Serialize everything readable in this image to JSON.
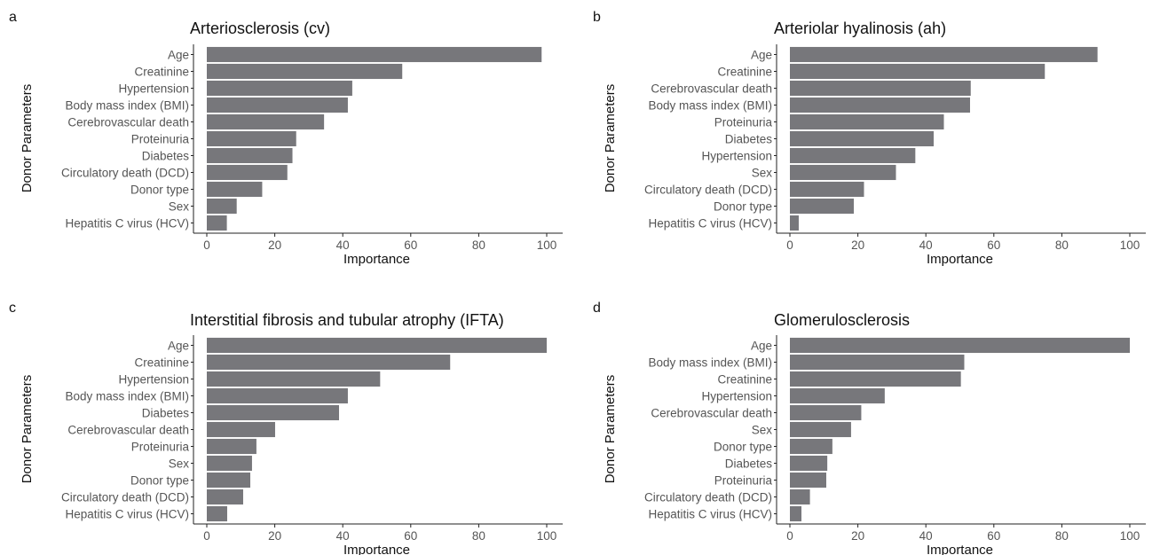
{
  "colors": {
    "bar": "#77777b",
    "axis": "#222222",
    "text": "#555555"
  },
  "axis_titles": {
    "x": "Importance",
    "y": "Donor Parameters"
  },
  "chart_data": [
    {
      "panel": "a",
      "type": "bar",
      "orientation": "horizontal",
      "title": "Arteriosclerosis (cv)",
      "xlabel": "Importance",
      "ylabel": "Donor Parameters",
      "xlim": [
        0,
        100
      ],
      "xticks": [
        "0",
        "20",
        "40",
        "60",
        "80",
        "100"
      ],
      "grid": false,
      "categories": [
        "Age",
        "Creatinine",
        "Hypertension",
        "Body mass index (BMI)",
        "Cerebrovascular death",
        "Proteinuria",
        "Diabetes",
        "Circulatory death (DCD)",
        "Donor type",
        "Sex",
        "Hepatitis C virus (HCV)"
      ],
      "values": [
        98.5,
        57.5,
        42.8,
        41.5,
        34.5,
        26.3,
        25.2,
        23.7,
        16.3,
        8.8,
        5.9
      ]
    },
    {
      "panel": "b",
      "type": "bar",
      "orientation": "horizontal",
      "title": "Arteriolar hyalinosis (ah)",
      "xlabel": "Importance",
      "ylabel": "Donor Parameters",
      "xlim": [
        0,
        100
      ],
      "xticks": [
        "0",
        "20",
        "40",
        "60",
        "80",
        "100"
      ],
      "grid": false,
      "categories": [
        "Age",
        "Creatinine",
        "Cerebrovascular death",
        "Body mass index (BMI)",
        "Proteinuria",
        "Diabetes",
        "Hypertension",
        "Sex",
        "Circulatory death (DCD)",
        "Donor type",
        "Hepatitis C virus (HCV)"
      ],
      "values": [
        90.5,
        75.0,
        53.2,
        53.0,
        45.3,
        42.3,
        36.9,
        31.2,
        21.8,
        18.8,
        2.6
      ]
    },
    {
      "panel": "c",
      "type": "bar",
      "orientation": "horizontal",
      "title": "Interstitial fibrosis and tubular atrophy (IFTA)",
      "xlabel": "Importance",
      "ylabel": "Donor Parameters",
      "xlim": [
        0,
        100
      ],
      "xticks": [
        "0",
        "20",
        "40",
        "60",
        "80",
        "100"
      ],
      "grid": false,
      "categories": [
        "Age",
        "Creatinine",
        "Hypertension",
        "Body mass index (BMI)",
        "Diabetes",
        "Cerebrovascular death",
        "Proteinuria",
        "Sex",
        "Donor type",
        "Circulatory death (DCD)",
        "Hepatitis C virus (HCV)"
      ],
      "values": [
        100,
        71.6,
        51.0,
        41.5,
        38.9,
        20.1,
        14.6,
        13.3,
        12.8,
        10.7,
        6.0
      ]
    },
    {
      "panel": "d",
      "type": "bar",
      "orientation": "horizontal",
      "title": "Glomerulosclerosis",
      "xlabel": "Importance",
      "ylabel": "Donor Parameters",
      "xlim": [
        0,
        100
      ],
      "xticks": [
        "0",
        "20",
        "40",
        "60",
        "80",
        "100"
      ],
      "grid": false,
      "categories": [
        "Age",
        "Body mass index (BMI)",
        "Creatinine",
        "Hypertension",
        "Cerebrovascular death",
        "Sex",
        "Donor type",
        "Diabetes",
        "Proteinuria",
        "Circulatory death (DCD)",
        "Hepatitis C virus (HCV)"
      ],
      "values": [
        100,
        51.3,
        50.3,
        27.9,
        21.0,
        18.0,
        12.5,
        11.0,
        10.7,
        5.9,
        3.4
      ]
    }
  ]
}
